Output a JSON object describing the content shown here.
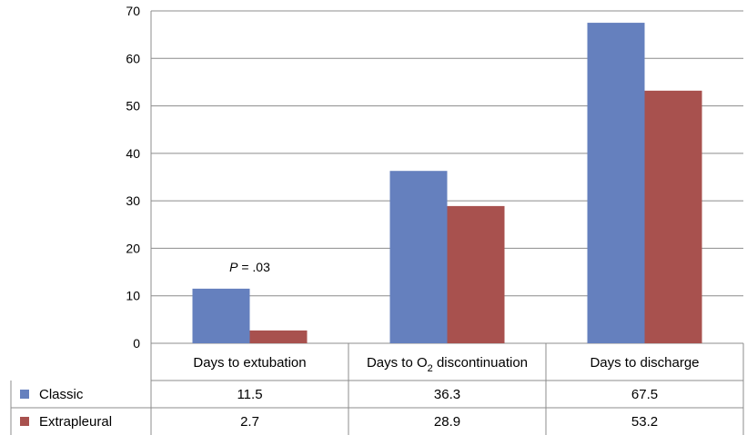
{
  "chart_data": {
    "type": "bar",
    "categories": [
      "Days to extubation",
      "Days to O2 discontinuation",
      "Days to discharge"
    ],
    "series": [
      {
        "name": "Classic",
        "values": [
          11.5,
          36.3,
          67.5
        ],
        "color": "#6580be"
      },
      {
        "name": "Extrapleural",
        "values": [
          2.7,
          28.9,
          53.2
        ],
        "color": "#a8514e"
      }
    ],
    "ylim": [
      0,
      70
    ],
    "yticks": [
      0,
      10,
      20,
      30,
      40,
      50,
      60,
      70
    ],
    "grid": true,
    "annotation": {
      "text_italic": "P",
      "text_rest": " = .03",
      "category_index": 0
    },
    "data_table": {
      "rows": [
        {
          "label": "Classic",
          "values": [
            "11.5",
            "36.3",
            "67.5"
          ]
        },
        {
          "label": "Extrapleural",
          "values": [
            "2.7",
            "28.9",
            "53.2"
          ]
        }
      ]
    }
  }
}
